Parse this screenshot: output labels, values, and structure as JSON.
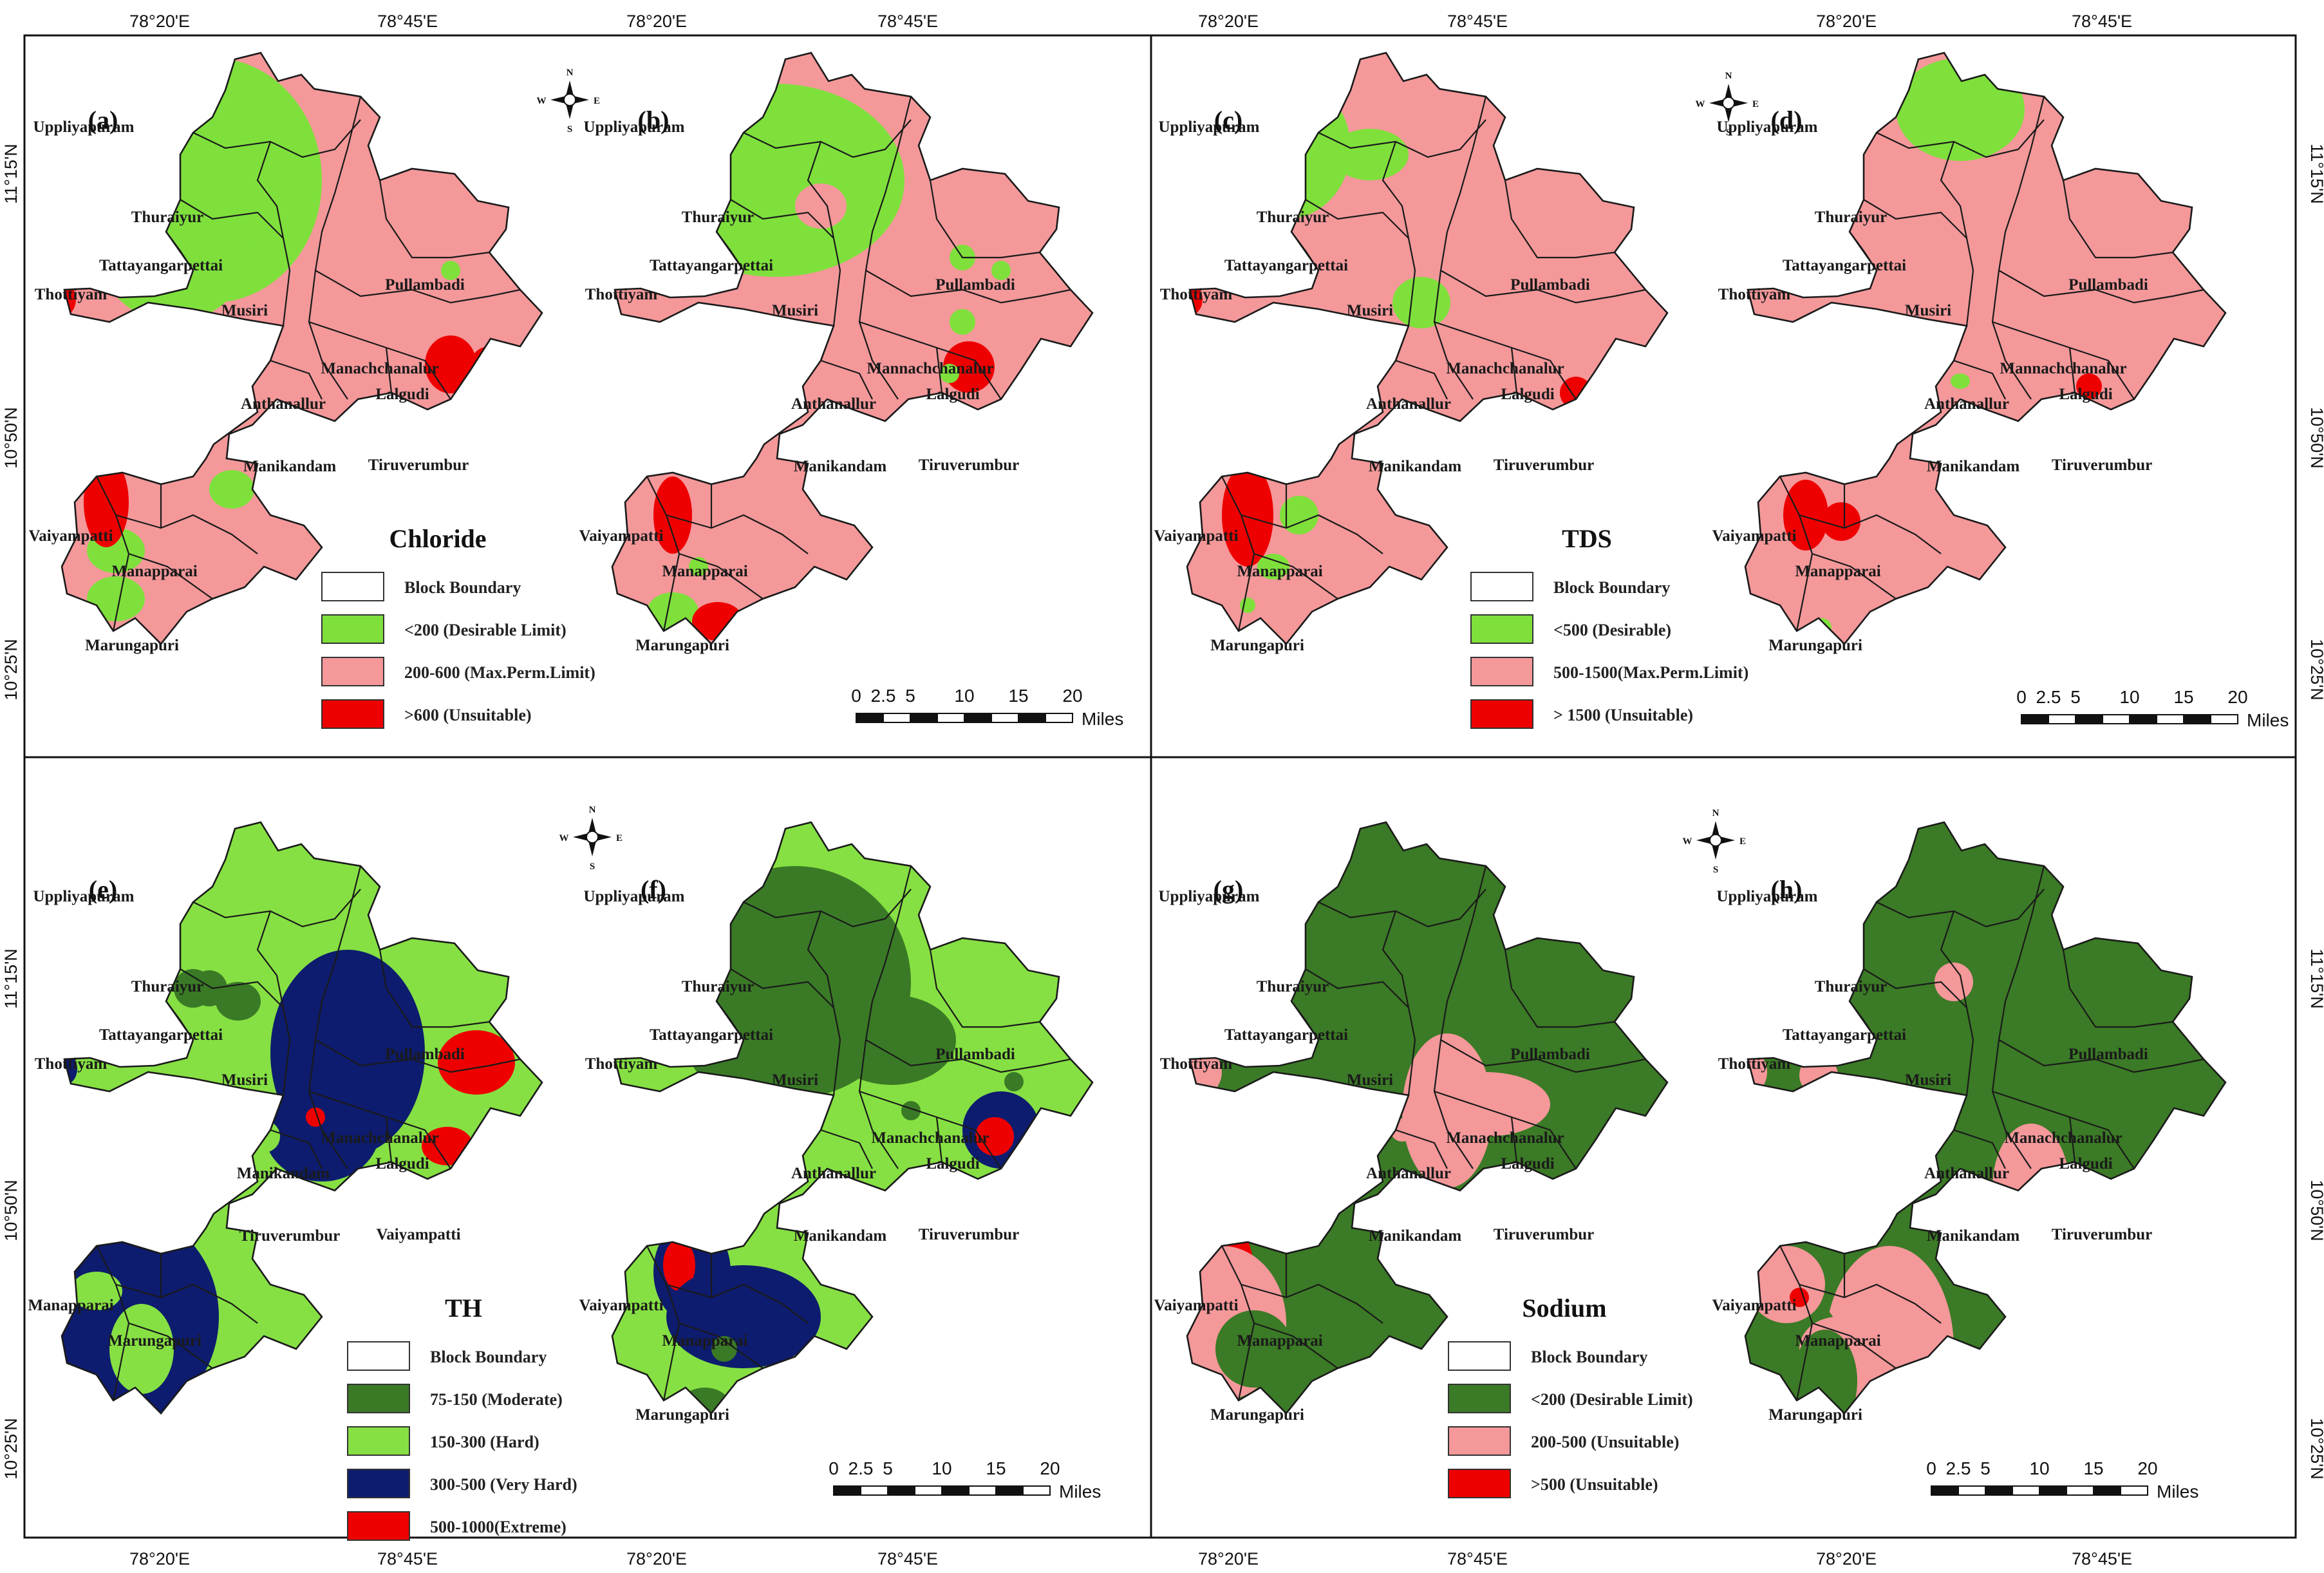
{
  "coordinates": {
    "lon_top": [
      "78°20'E",
      "78°45'E",
      "78°20'E",
      "78°45'E",
      "78°20'E",
      "78°45'E",
      "78°20'E",
      "78°45'E"
    ],
    "lon_bottom": [
      "78°20'E",
      "78°45'E",
      "78°20'E",
      "78°45'E",
      "78°20'E",
      "78°45'E",
      "78°20'E",
      "78°45'E"
    ],
    "lat_left": [
      "11°15'N",
      "10°50'N",
      "10°25'N",
      "11°15'N",
      "10°50'N",
      "10°25'N"
    ],
    "lat_right": [
      "11°15'N",
      "10°50'N",
      "10°25'N",
      "11°15'N",
      "10°50'N",
      "10°25'N"
    ]
  },
  "compass": {
    "n": "N",
    "s": "S",
    "e": "E",
    "w": "W"
  },
  "scale_bar": {
    "ticks": [
      "0",
      "2.5",
      "5",
      "10",
      "15",
      "20"
    ],
    "unit": "Miles"
  },
  "panels": [
    {
      "label": "(a)",
      "colors": {
        "base": "#f4989a",
        "low": "#7fe03c",
        "high": "#ee0000"
      },
      "blocks": [
        "Uppliyapuram",
        "Thuraiyur",
        "Tattayangarpettai",
        "Thottiyam",
        "Musiri",
        "Pullambadi",
        "Manachchanalur",
        "Lalgudi",
        "Anthanallur",
        "Manikandam",
        "Tiruverumbur",
        "Vaiyampatti",
        "Manapparai",
        "Marungapuri"
      ]
    },
    {
      "label": "(b)",
      "colors": {
        "base": "#f4989a",
        "low": "#7fe03c",
        "high": "#ee0000"
      },
      "blocks": [
        "Uppliyapuram",
        "Thuraiyur",
        "Tattayangarpettai",
        "Thottiyam",
        "Musiri",
        "Pullambadi",
        "Mannachchanalur",
        "Lalgudi",
        "Anthanallur",
        "Manikandam",
        "Tiruverumbur",
        "Vaiyampatti",
        "Manapparai",
        "Marungapuri"
      ]
    },
    {
      "label": "(c)",
      "colors": {
        "base": "#f4989a",
        "low": "#7fe03c",
        "high": "#ee0000"
      },
      "blocks": [
        "Uppliyapuram",
        "Thuraiyur",
        "Tattayangarpettai",
        "Thottiyam",
        "Musiri",
        "Pullambadi",
        "Manachchanalur",
        "Lalgudi",
        "Anthanallur",
        "Manikandam",
        "Tiruverumbur",
        "Vaiyampatti",
        "Manapparai",
        "Marungapuri"
      ]
    },
    {
      "label": "(d)",
      "colors": {
        "base": "#f4989a",
        "low": "#7fe03c",
        "high": "#ee0000"
      },
      "blocks": [
        "Uppliyapuram",
        "Thuraiyur",
        "Tattayangarpettai",
        "Thottiyam",
        "Musiri",
        "Pullambadi",
        "Mannachchanalur",
        "Lalgudi",
        "Anthanallur",
        "Manikandam",
        "Tiruverumbur",
        "Vaiyampatti",
        "Manapparai",
        "Marungapuri"
      ]
    },
    {
      "label": "(e)",
      "colors": {
        "base": "#86e043",
        "low": "#3a7a26",
        "high": "#ee0000",
        "mid": "#0d1c6e"
      },
      "blocks": [
        "Uppliyapuram",
        "Thuraiyur",
        "Tattayangarpettai",
        "Thottiyam",
        "Musiri",
        "Pullambadi",
        "Manachchanalur",
        "Lalgudi",
        "Manikandam",
        "Tiruverumbur",
        "Vaiyampatti",
        "Manapparai",
        "Marungapuri"
      ]
    },
    {
      "label": "(f)",
      "colors": {
        "base": "#86e043",
        "low": "#3a7a26",
        "high": "#ee0000",
        "mid": "#0d1c6e"
      },
      "blocks": [
        "Uppliyapuram",
        "Thuraiyur",
        "Tattayangarpettai",
        "Thottiyam",
        "Musiri",
        "Pullambadi",
        "Manachchanalur",
        "Lalgudi",
        "Anthanallur",
        "Manikandam",
        "Tiruverumbur",
        "Vaiyampatti",
        "Manapparai",
        "Marungapuri"
      ]
    },
    {
      "label": "(g)",
      "colors": {
        "base": "#3b7a26",
        "low": "#f4989a",
        "high": "#ee0000"
      },
      "blocks": [
        "Uppliyapuram",
        "Thuraiyur",
        "Tattayangarpettai",
        "Thottiyam",
        "Musiri",
        "Pullambadi",
        "Manachchanalur",
        "Lalgudi",
        "Anthanallur",
        "Manikandam",
        "Tiruverumbur",
        "Vaiyampatti",
        "Manapparai",
        "Marungapuri"
      ]
    },
    {
      "label": "(h)",
      "colors": {
        "base": "#3b7a26",
        "low": "#f4989a",
        "high": "#ee0000"
      },
      "blocks": [
        "Uppliyapuram",
        "Thuraiyur",
        "Tattayangarpettai",
        "Thottiyam",
        "Musiri",
        "Pullambadi",
        "Manachchanalur",
        "Lalgudi",
        "Anthanallur",
        "Manikandam",
        "Tiruverumbur",
        "Vaiyampatti",
        "Manapparai",
        "Marungapuri"
      ]
    }
  ],
  "legends": [
    {
      "title": "Chloride",
      "items": [
        {
          "label": "Block Boundary",
          "color": "#ffffff"
        },
        {
          "label": "<200 (Desirable Limit)",
          "color": "#7fe03c"
        },
        {
          "label": "200-600 (Max.Perm.Limit)",
          "color": "#f4989a"
        },
        {
          "label": ">600 (Unsuitable)",
          "color": "#ee0000"
        }
      ]
    },
    {
      "title": "TDS",
      "items": [
        {
          "label": "Block Boundary",
          "color": "#ffffff"
        },
        {
          "label": "<500 (Desirable)",
          "color": "#7fe03c"
        },
        {
          "label": "500-1500(Max.Perm.Limit)",
          "color": "#f4989a"
        },
        {
          "label": "> 1500 (Unsuitable)",
          "color": "#ee0000"
        }
      ]
    },
    {
      "title": "TH",
      "items": [
        {
          "label": "Block Boundary",
          "color": "#ffffff"
        },
        {
          "label": "75-150 (Moderate)",
          "color": "#3a7a26"
        },
        {
          "label": "150-300 (Hard)",
          "color": "#86e043"
        },
        {
          "label": "300-500 (Very Hard)",
          "color": "#0d1c6e"
        },
        {
          "label": "500-1000(Extreme)",
          "color": "#ee0000"
        }
      ]
    },
    {
      "title": "Sodium",
      "items": [
        {
          "label": "Block Boundary",
          "color": "#ffffff"
        },
        {
          "label": "<200 (Desirable Limit)",
          "color": "#3b7a26"
        },
        {
          "label": "200-500 (Unsuitable)",
          "color": "#f4989a"
        },
        {
          "label": ">500 (Unsuitable)",
          "color": "#ee0000"
        }
      ]
    }
  ]
}
